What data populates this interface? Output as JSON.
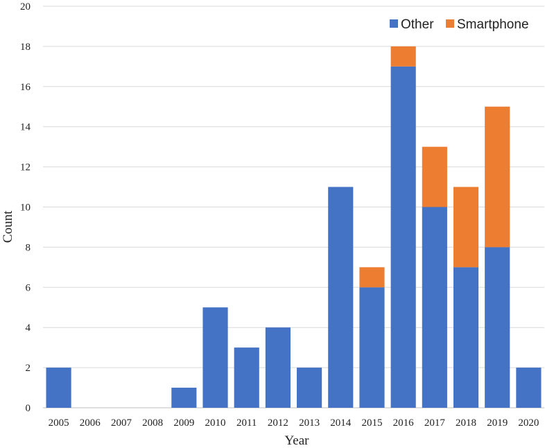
{
  "chart_data": {
    "type": "bar",
    "stacked": true,
    "categories": [
      "2005",
      "2006",
      "2007",
      "2008",
      "2009",
      "2010",
      "2011",
      "2012",
      "2013",
      "2014",
      "2015",
      "2016",
      "2017",
      "2018",
      "2019",
      "2020"
    ],
    "series": [
      {
        "name": "Other",
        "color": "#4472C4",
        "values": [
          2,
          0,
          0,
          0,
          1,
          5,
          3,
          4,
          2,
          11,
          6,
          17,
          10,
          7,
          8,
          2
        ]
      },
      {
        "name": "Smartphone",
        "color": "#ED7D31",
        "values": [
          0,
          0,
          0,
          0,
          0,
          0,
          0,
          0,
          0,
          0,
          1,
          1,
          3,
          4,
          7,
          0
        ]
      }
    ],
    "xlabel": "Year",
    "ylabel": "Count",
    "ylim": [
      0,
      20
    ],
    "yticks": [
      0,
      2,
      4,
      6,
      8,
      10,
      12,
      14,
      16,
      18,
      20
    ],
    "grid": true,
    "legend_position": "top-right"
  }
}
